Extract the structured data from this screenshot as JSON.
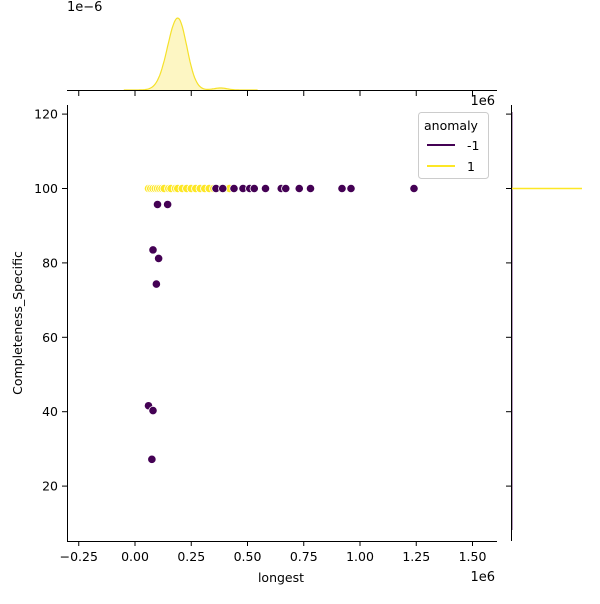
{
  "chart_data": {
    "type": "scatter",
    "subtype": "jointplot",
    "title": "",
    "xlabel": "longest",
    "ylabel": "Completeness_Specific",
    "x_scale_label": "1e6",
    "top_marginal_scale_label": "1e−6",
    "right_marginal_scale_label": "1e6",
    "xlim": [
      -0.3,
      1.6
    ],
    "ylim": [
      5,
      122
    ],
    "x_ticks": [
      -0.25,
      0.0,
      0.25,
      0.5,
      0.75,
      1.0,
      1.25,
      1.5
    ],
    "x_tick_labels": [
      "−0.25",
      "0.00",
      "0.25",
      "0.50",
      "0.75",
      "1.00",
      "1.25",
      "1.50"
    ],
    "y_ticks": [
      20,
      40,
      60,
      80,
      100,
      120
    ],
    "y_tick_labels": [
      "20",
      "40",
      "60",
      "80",
      "100",
      "120"
    ],
    "grid": false,
    "legend": {
      "title": "anomaly",
      "position": "upper right",
      "entries": [
        {
          "label": "-1",
          "color": "#440154"
        },
        {
          "label": "1",
          "color": "#fde725"
        }
      ]
    },
    "series": [
      {
        "name": "1",
        "color": "#fde725",
        "points": [
          [
            0.06,
            100
          ],
          [
            0.07,
            100
          ],
          [
            0.08,
            100
          ],
          [
            0.09,
            100
          ],
          [
            0.1,
            100
          ],
          [
            0.11,
            100
          ],
          [
            0.12,
            100
          ],
          [
            0.13,
            100
          ],
          [
            0.15,
            100
          ],
          [
            0.16,
            100
          ],
          [
            0.18,
            100
          ],
          [
            0.19,
            100
          ],
          [
            0.21,
            100
          ],
          [
            0.23,
            100
          ],
          [
            0.25,
            100
          ],
          [
            0.27,
            100
          ],
          [
            0.29,
            100
          ],
          [
            0.31,
            100
          ],
          [
            0.33,
            100
          ],
          [
            0.35,
            100
          ],
          [
            0.38,
            100
          ],
          [
            0.4,
            100
          ],
          [
            0.42,
            100
          ]
        ]
      },
      {
        "name": "-1",
        "color": "#440154",
        "points": [
          [
            0.36,
            100
          ],
          [
            0.39,
            100
          ],
          [
            0.44,
            100
          ],
          [
            0.48,
            100
          ],
          [
            0.51,
            100
          ],
          [
            0.53,
            100
          ],
          [
            0.58,
            100
          ],
          [
            0.65,
            100
          ],
          [
            0.67,
            100
          ],
          [
            0.73,
            100
          ],
          [
            0.78,
            100
          ],
          [
            0.92,
            100
          ],
          [
            0.96,
            100
          ],
          [
            1.24,
            100
          ],
          [
            0.1,
            95.7
          ],
          [
            0.145,
            95.7
          ],
          [
            0.08,
            83.5
          ],
          [
            0.105,
            81.2
          ],
          [
            0.095,
            74.3
          ],
          [
            0.06,
            41.6
          ],
          [
            0.08,
            40.3
          ],
          [
            0.075,
            27.2
          ]
        ]
      }
    ],
    "marginals": {
      "top": {
        "type": "kde",
        "series": [
          {
            "name": "1",
            "color": "#fde725",
            "peak_x": 0.19,
            "approx_range": [
              0.05,
              0.3
            ],
            "fill": true
          },
          {
            "name": "-1",
            "color": "#440154",
            "note": "near-flat along baseline"
          }
        ]
      },
      "right": {
        "type": "kde",
        "series": [
          {
            "name": "1",
            "color": "#fde725",
            "spike_y": 100
          },
          {
            "name": "-1",
            "color": "#440154",
            "note": "near-flat along axis"
          }
        ]
      }
    }
  }
}
